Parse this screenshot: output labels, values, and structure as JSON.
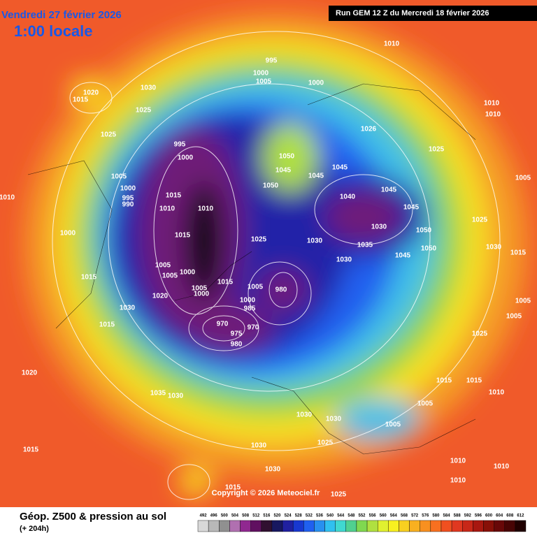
{
  "header": {
    "date": "Vendredi 27 février 2026",
    "time": "1:00 locale",
    "run": "Run GEM 12 Z du Mercredi 18 février 2026"
  },
  "copyright": "Copyright © 2026 Meteociel.fr",
  "footer": {
    "title": "Géop. Z500 & pression au sol",
    "subtitle": "(+ 204h)"
  },
  "legend": {
    "labels": [
      492,
      496,
      500,
      504,
      508,
      512,
      516,
      520,
      524,
      528,
      532,
      536,
      540,
      544,
      548,
      552,
      556,
      560,
      564,
      568,
      572,
      576,
      580,
      584,
      588,
      592,
      596,
      600,
      604,
      608,
      612
    ],
    "colors": [
      "#d8d8d8",
      "#b8b8b8",
      "#909090",
      "#b070b0",
      "#902890",
      "#601060",
      "#301030",
      "#181860",
      "#2020a0",
      "#1838d0",
      "#2060f0",
      "#2890f0",
      "#30c0f0",
      "#40d8d0",
      "#50d090",
      "#80d850",
      "#b0e040",
      "#e0f030",
      "#f8f020",
      "#f8d020",
      "#f8b020",
      "#f89020",
      "#f87020",
      "#f05020",
      "#e03820",
      "#c82818",
      "#a81810",
      "#881008",
      "#680808",
      "#480404",
      "#200000"
    ]
  },
  "isobar_labels": [
    995,
    1000,
    1005,
    1000,
    1010,
    1020,
    1015,
    1030,
    1025,
    1025,
    995,
    1000,
    1005,
    1000,
    995,
    990,
    1015,
    1010,
    1010,
    1015,
    1000,
    1010,
    1005,
    1005,
    1000,
    1005,
    1000,
    1015,
    1015,
    1020,
    1030,
    1015,
    970,
    975,
    980,
    970,
    1005,
    1000,
    985,
    980,
    1025,
    1030,
    1030,
    1035,
    1040,
    1045,
    1045,
    1030,
    1050,
    1050,
    1045,
    1050,
    1045,
    1050,
    1045,
    1045,
    1026,
    1025,
    1010,
    1010,
    1005,
    1025,
    1030,
    1015,
    1005,
    1005,
    1025,
    1015,
    1015,
    1010,
    1005,
    1005,
    1030,
    1030,
    1025,
    1030,
    1030,
    1015,
    1025,
    1035,
    1030,
    1020,
    1015,
    1010,
    1010,
    1010
  ]
}
